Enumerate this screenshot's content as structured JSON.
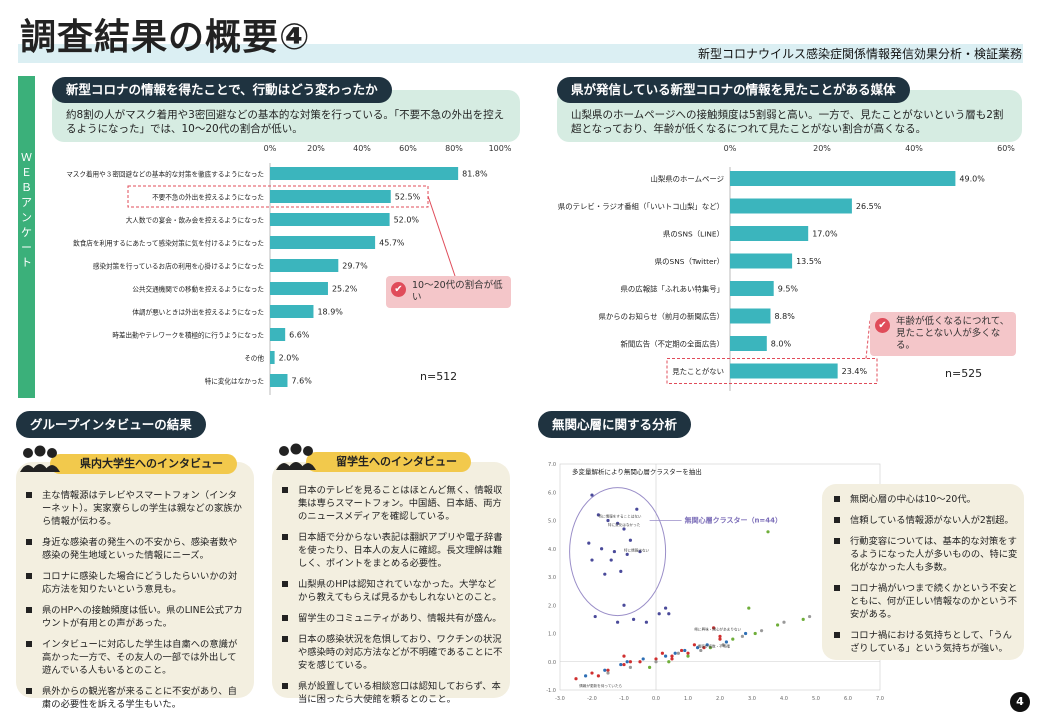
{
  "header": {
    "title": "調査結果の概要④",
    "subtitle": "新型コロナウイルス感染症関係情報発信効果分析・検証業務"
  },
  "web_label": "ＷＥＢアンケート",
  "left_section": {
    "heading": "新型コロナの情報を得たことで、行動はどう変わったか",
    "description": "約8割の人がマスク着用や3密回避などの基本的な対策を行っている。「不要不急の外出を控えるようになった」では、10～20代の割合が低い。",
    "callout": "10～20代の割合が低い",
    "n_label": "n=512"
  },
  "right_section": {
    "heading": "県が発信している新型コロナの情報を見たことがある媒体",
    "description": "山梨県のホームページへの接触頻度は5割弱と高い。一方で、見たことがないという層も2割超となっており、年齢が低くなるにつれて見たことがない割合が高くなる。",
    "callout": "年齢が低くなるにつれて、見たことない人が多くなる。",
    "n_label": "n=525"
  },
  "chart_data": [
    {
      "type": "bar",
      "orientation": "horizontal",
      "categories": [
        "マスク着用や３密回避などの基本的な対策を徹底するようになった",
        "不要不急の外出を控えるようになった",
        "大人数での宴会・飲み会を控えるようになった",
        "飲食店を利用するにあたって感染対策に気を付けるようになった",
        "感染対策を行っているお店の利用を心掛けるようになった",
        "公共交通機関での移動を控えるようになった",
        "体調が悪いときは外出を控えるようになった",
        "時差出勤やテレワークを積極的に行うようになった",
        "その他",
        "特に変化はなかった"
      ],
      "values": [
        81.8,
        52.5,
        52.0,
        45.7,
        29.7,
        25.2,
        18.9,
        6.6,
        2.0,
        7.6
      ],
      "value_labels": [
        "81.8%",
        "52.5%",
        "52.0%",
        "45.7%",
        "29.7%",
        "25.2%",
        "18.9%",
        "6.6%",
        "2.0%",
        "7.6%"
      ],
      "xticks": [
        "0%",
        "20%",
        "40%",
        "60%",
        "80%",
        "100%"
      ],
      "xlim": [
        0,
        100
      ],
      "color": "#3bb5bd"
    },
    {
      "type": "bar",
      "orientation": "horizontal",
      "categories": [
        "山梨県のホームページ",
        "県のテレビ・ラジオ番組（「いいトコ山梨」など）",
        "県のSNS（LINE）",
        "県のSNS（Twitter）",
        "県の広報誌「ふれあい特集号」",
        "県からのお知らせ（前月の新聞広告）",
        "新聞広告（不定期の全面広告）",
        "見たことがない"
      ],
      "values": [
        49.0,
        26.5,
        17.0,
        13.5,
        9.5,
        8.8,
        8.0,
        23.4
      ],
      "value_labels": [
        "49.0%",
        "26.5%",
        "17.0%",
        "13.5%",
        "9.5%",
        "8.8%",
        "8.0%",
        "23.4%"
      ],
      "xticks": [
        "0%",
        "20%",
        "40%",
        "60%"
      ],
      "xlim": [
        0,
        60
      ],
      "color": "#3bb5bd"
    },
    {
      "type": "scatter",
      "title": "多変量解析により無関心層クラスターを抽出",
      "annotation": "無関心層クラスター（n=44）",
      "xticks": [
        "-3.0",
        "-2.0",
        "-1.0",
        "0.0",
        "1.0",
        "2.0",
        "3.0",
        "4.0",
        "5.0",
        "6.0",
        "7.0"
      ],
      "yticks": [
        "-1.0",
        "0.0",
        "1.0",
        "2.0",
        "3.0",
        "4.0",
        "5.0",
        "6.0",
        "7.0"
      ],
      "xlim": [
        -3,
        7
      ],
      "ylim": [
        -1,
        7
      ],
      "series": [
        {
          "color": "#4a4a9a",
          "x": [
            -2.0,
            -1.8,
            -1.5,
            -1.2,
            -1.0,
            -0.6,
            -2.1,
            -1.7,
            -1.3,
            -0.8,
            -1.4,
            -0.9,
            -2.0,
            -1.6,
            -1.1,
            -0.5,
            -1.9,
            -1.0,
            -0.7,
            0.1,
            0.3,
            0.4,
            -1.2,
            -0.3
          ],
          "y": [
            5.9,
            5.2,
            5.0,
            4.9,
            4.7,
            5.4,
            4.2,
            4.0,
            3.9,
            4.3,
            3.6,
            3.8,
            3.6,
            3.1,
            3.2,
            3.9,
            1.6,
            2.0,
            1.5,
            1.7,
            1.9,
            1.7,
            1.4,
            1.4
          ]
        },
        {
          "color": "#d03030",
          "x": [
            -2.5,
            -2.0,
            -1.5,
            -1.0,
            -0.5,
            0.0,
            0.5,
            1.0,
            1.5,
            2.0,
            -1.8,
            -0.8,
            0.2,
            0.8,
            1.8,
            2.0,
            -1.0,
            0.5,
            1.2
          ],
          "y": [
            -0.6,
            -0.4,
            -0.3,
            -0.1,
            0.0,
            0.1,
            0.2,
            0.3,
            0.5,
            0.8,
            -0.5,
            0.0,
            0.3,
            0.4,
            1.2,
            0.9,
            0.2,
            0.1,
            0.6
          ]
        },
        {
          "color": "#2e6fb5",
          "x": [
            -2.2,
            -1.6,
            -1.1,
            -0.4,
            0.3,
            0.9,
            1.6,
            2.2,
            2.8,
            -0.9,
            0.6,
            1.3
          ],
          "y": [
            -0.5,
            -0.3,
            -0.1,
            0.1,
            0.2,
            0.4,
            0.6,
            0.7,
            1.0,
            0.0,
            0.3,
            0.5
          ]
        },
        {
          "color": "#6fae3a",
          "x": [
            -0.2,
            0.4,
            1.0,
            1.7,
            2.4,
            3.1,
            3.8,
            4.6,
            5.4,
            6.0,
            3.5,
            2.9
          ],
          "y": [
            -0.2,
            0.0,
            0.2,
            0.5,
            0.8,
            1.0,
            1.3,
            1.5,
            1.8,
            2.3,
            4.6,
            1.9
          ]
        },
        {
          "color": "#999999",
          "x": [
            -1.5,
            -0.8,
            0.0,
            0.7,
            1.4,
            2.1,
            2.7,
            3.3,
            4.0,
            4.8,
            5.6,
            6.2
          ],
          "y": [
            -0.4,
            -0.2,
            0.0,
            0.3,
            0.4,
            0.6,
            0.9,
            1.1,
            1.4,
            1.6,
            1.9,
            2.0
          ]
        }
      ]
    }
  ],
  "scatter_labels": [
    "特に情報をすることはない",
    "特に変化はなかった",
    "特に情報はない",
    "県に興味・関心があまりない",
    "情報が複数・不明確",
    "情報が更新を待っていたら"
  ],
  "group_interview": {
    "heading": "グループインタビューの結果",
    "students": {
      "heading": "県内大学生へのインタビュー",
      "items": [
        "主な情報源はテレビやスマートフォン（インターネット）。実家寮らしの学生は親などの家族から情報が伝わる。",
        "身近な感染者の発生への不安から、感染者数や感染の発生地域といった情報にニーズ。",
        "コロナに感染した場合にどうしたらいいかの対応方法を知りたいという意見も。",
        "県のHPへの接触頻度は低い。県のLINE公式アカウントが有用との声があった。",
        "インタビューに対応した学生は自粛への意識が高かった一方で、その友人の一部では外出して遊んでいる人もいるとのこと。",
        "県外からの観光客が来ることに不安があり、自粛の必要性を訴える学生もいた。"
      ]
    },
    "foreign": {
      "heading": "留学生へのインタビュー",
      "items": [
        "日本のテレビを見ることはほとんど無く、情報収集は専らスマートフォン。中国語、日本語、両方のニュースメディアを確認している。",
        "日本語で分からない表記は翻訳アプリや電子辞書を使ったり、日本人の友人に確認。長文理解は難しく、ポイントをまとめる必要性。",
        "山梨県のHPは認知されていなかった。大学などから教えてもらえば見るかもしれないとのこと。",
        "留学生のコミュニティがあり、情報共有が盛ん。",
        "日本の感染状況を危惧しており、ワクチンの状況や感染時の対応方法などが不明確であることに不安を感じている。",
        "県が設置している相談窓口は認知しておらず、本当に困ったら大使館を頼るとのこと。"
      ]
    }
  },
  "apathy": {
    "heading": "無関心層に関する分析",
    "items": [
      "無関心層の中心は10～20代。",
      "信頼している情報源がない人が2割超。",
      "行動変容については、基本的な対策をするようになった人が多いものの、特に変化がなかった人も多数。",
      "コロナ禍がいつまで続くかという不安とともに、何が正しい情報なのかという不安がある。",
      "コロナ禍における気持ちとして、「うんざりしている」という気持ちが強い。"
    ]
  },
  "page_number": "4",
  "colors": {
    "accent": "#3bb5bd",
    "dark": "#1f3340",
    "green": "#3bb07a",
    "mint": "#d6ece2",
    "beige": "#f3efe0",
    "yellow": "#f2c94c",
    "callout": "#f4c6c9",
    "alert": "#e04c5a"
  }
}
